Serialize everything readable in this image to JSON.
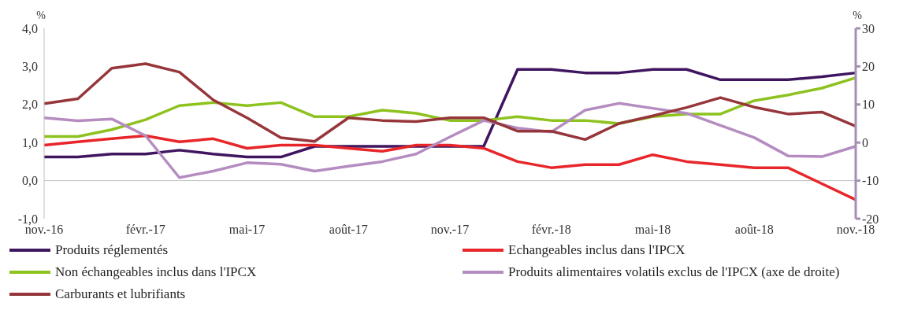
{
  "chart_data": {
    "type": "line",
    "ylabel": "%",
    "y2label": "%",
    "categories": [
      "nov.-16",
      null,
      null,
      "févr.-17",
      null,
      null,
      "mai-17",
      null,
      null,
      "août-17",
      null,
      null,
      "nov.-17",
      null,
      null,
      "févr.-18",
      null,
      null,
      "mai-18",
      null,
      null,
      "août-18",
      null,
      null,
      "nov.-18"
    ],
    "series": [
      {
        "name": "Produits réglementés",
        "color": "#3f1560",
        "values": [
          0.62,
          0.62,
          0.7,
          0.7,
          0.8,
          0.7,
          0.62,
          0.62,
          0.9,
          0.9,
          0.9,
          0.9,
          0.9,
          0.9,
          2.92,
          2.92,
          2.83,
          2.83,
          2.92,
          2.92,
          2.65,
          2.65,
          2.65,
          2.73,
          2.83
        ]
      },
      {
        "name": "Echangeables inclus dans l'IPCX",
        "color": "#e8262a",
        "values": [
          0.93,
          1.02,
          1.1,
          1.18,
          1.02,
          1.1,
          0.85,
          0.93,
          0.93,
          0.85,
          0.77,
          0.93,
          0.93,
          0.85,
          0.5,
          0.34,
          0.42,
          0.42,
          0.68,
          0.5,
          0.42,
          0.34,
          0.34,
          -0.08,
          -0.5
        ]
      },
      {
        "name": "Non échangeables inclus dans l'IPCX",
        "color": "#8dc21f",
        "values": [
          1.16,
          1.16,
          1.34,
          1.6,
          1.97,
          2.05,
          1.97,
          2.05,
          1.68,
          1.68,
          1.85,
          1.77,
          1.58,
          1.58,
          1.68,
          1.58,
          1.58,
          1.5,
          1.68,
          1.75,
          1.75,
          2.1,
          2.25,
          2.43,
          2.7
        ]
      },
      {
        "name": "Produits alimentaires volatils exclus de l'IPCX (axe de droite)",
        "color": "#b48cc0",
        "axis": "y2",
        "values": [
          6.5,
          5.7,
          6.2,
          1.8,
          -9.2,
          -7.5,
          -5.3,
          -5.7,
          -7.5,
          -6.2,
          -5,
          -3,
          1.5,
          5.8,
          3.8,
          2.8,
          8.5,
          10.3,
          9,
          7.7,
          4.5,
          1.3,
          -3.5,
          -3.7,
          -1
        ]
      },
      {
        "name": "Carburants et lubrifiants",
        "color": "#96363a",
        "values": [
          2.02,
          2.15,
          2.95,
          3.07,
          2.85,
          2.12,
          1.65,
          1.13,
          1.03,
          1.65,
          1.58,
          1.55,
          1.65,
          1.65,
          1.3,
          1.3,
          1.08,
          1.5,
          1.7,
          1.92,
          2.18,
          1.93,
          1.75,
          1.8,
          1.43
        ]
      }
    ],
    "ylim": [
      -1,
      4
    ],
    "yticks": [
      {
        "value": -1,
        "label": "-1,0"
      },
      {
        "value": 0,
        "label": "0,0"
      },
      {
        "value": 1,
        "label": "1,0"
      },
      {
        "value": 2,
        "label": "2,0"
      },
      {
        "value": 3,
        "label": "3,0"
      },
      {
        "value": 4,
        "label": "4,0"
      }
    ],
    "y2lim": [
      -20,
      30
    ],
    "y2ticks": [
      -20,
      -10,
      0,
      10,
      20,
      30
    ],
    "ref_lines": [
      {
        "axis": "y",
        "value": 0,
        "color": "#bfbfbf"
      }
    ],
    "grid": false,
    "legend": "bottom",
    "marker": "none",
    "line_style": "solid"
  }
}
